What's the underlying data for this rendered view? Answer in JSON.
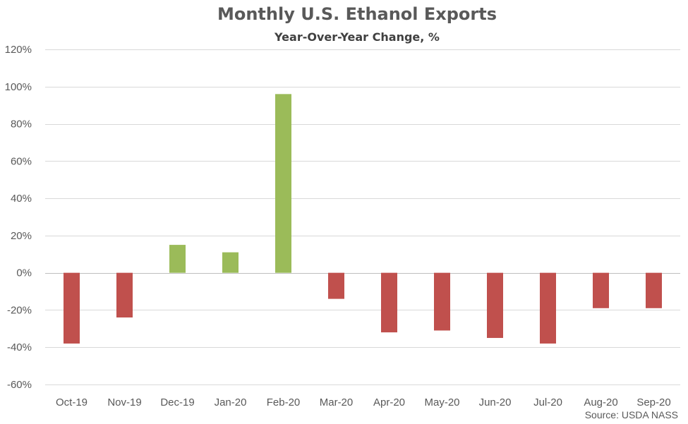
{
  "chart_data": {
    "type": "bar",
    "title": "Monthly U.S. Ethanol Exports",
    "subtitle": "Year-Over-Year Change, %",
    "xlabel": "",
    "ylabel": "",
    "categories": [
      "Oct-19",
      "Nov-19",
      "Dec-19",
      "Jan-20",
      "Feb-20",
      "Mar-20",
      "Apr-20",
      "May-20",
      "Jun-20",
      "Jul-20",
      "Aug-20",
      "Sep-20"
    ],
    "values": [
      -38,
      -24,
      15,
      11,
      96,
      -14,
      -32,
      -31,
      -35,
      -38,
      -19,
      -19
    ],
    "ylim": [
      -60,
      120
    ],
    "yticks": [
      120,
      100,
      80,
      60,
      40,
      20,
      0,
      -20,
      -40,
      -60
    ],
    "ytick_labels": [
      "120%",
      "100%",
      "80%",
      "60%",
      "40%",
      "20%",
      "0%",
      "-20%",
      "-40%",
      "-60%"
    ],
    "grid": true,
    "colors": {
      "positive": "#9BBB59",
      "negative": "#C0504D",
      "grid": "#D9D9D9",
      "axis": "#BFBFBF",
      "text": "#595959"
    },
    "source": "Source: USDA NASS"
  }
}
